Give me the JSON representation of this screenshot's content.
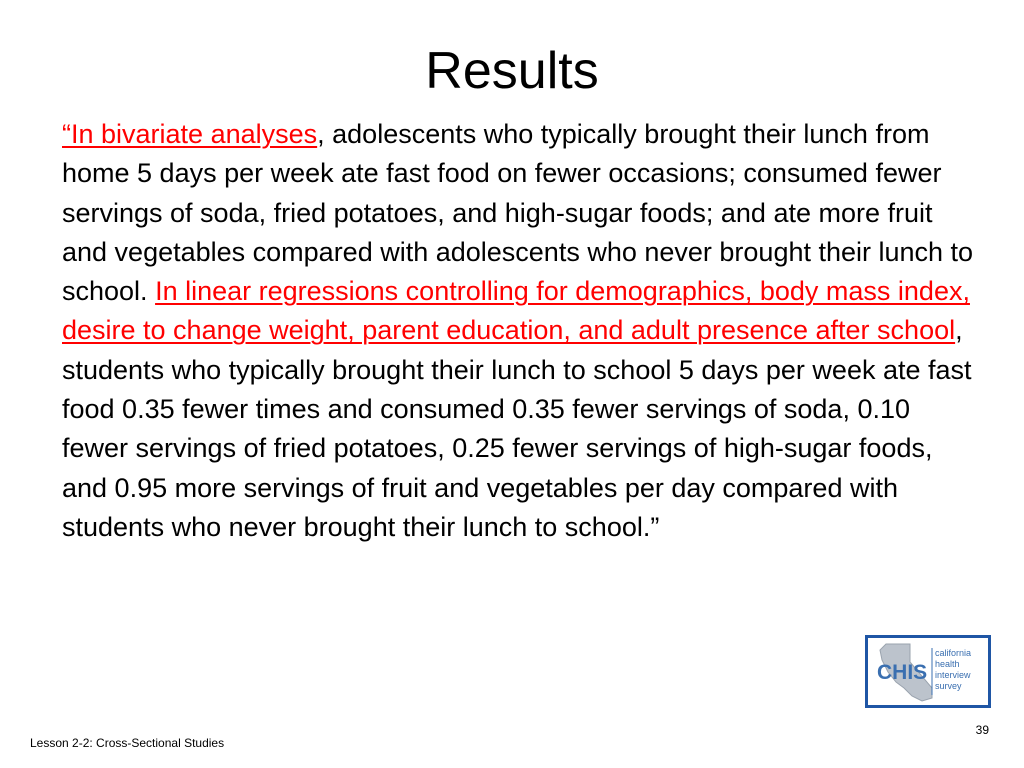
{
  "slide": {
    "title": "Results",
    "body": {
      "segment_1": "“In bivariate analyses",
      "segment_2": ", adolescents who typically brought their lunch from home 5 days per week ate fast food on fewer occasions; consumed fewer servings of soda, fried potatoes, and high-sugar foods; and ate more fruit and vegetables compared with adolescents who never brought their lunch to school. ",
      "segment_3": "In linear regressions controlling for demographics, body mass index, desire to change weight, parent education, and adult presence after school",
      "segment_4": ", students who typically brought their lunch to school 5 days per week ate fast food 0.35 fewer times and consumed 0.35 fewer servings of soda, 0.10 fewer servings of fried potatoes, 0.25 fewer servings of high-sugar foods, and 0.95 more servings of fruit and vegetables per day compared with students who never brought their lunch to school.”"
    },
    "logo": {
      "icon": "chis-logo",
      "abbr": "CHIS",
      "line1": "california",
      "line2": "health",
      "line3": "interview",
      "line4": "survey"
    },
    "footer": "Lesson 2-2: Cross-Sectional Studies",
    "page_number": "39"
  },
  "colors": {
    "highlight": "#ff0000",
    "logo_border": "#1f56a5",
    "logo_text": "#3a6fb0"
  }
}
